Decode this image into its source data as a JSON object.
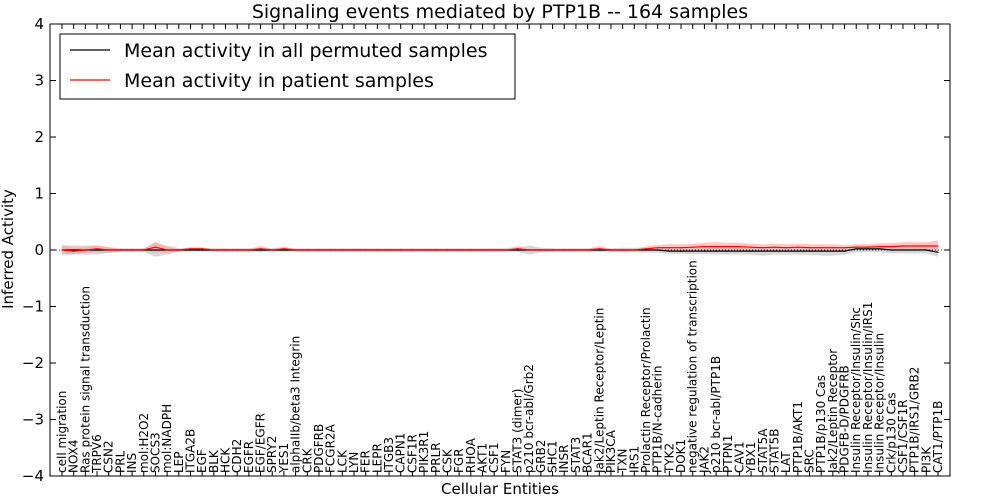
{
  "chart_data": {
    "type": "line",
    "title": "Signaling events mediated by PTP1B -- 164 samples",
    "xlabel": "Cellular Entities",
    "ylabel": "Inferred Activity",
    "ylim": [
      -4,
      4
    ],
    "yticks": [
      4,
      3,
      2,
      1,
      0,
      -1,
      -2,
      -3,
      -4
    ],
    "ytick_labels": [
      "4",
      "3",
      "2",
      "1",
      "0",
      "−1",
      "−2",
      "−3",
      "−4"
    ],
    "grid": false,
    "legend_position": "top-left",
    "categories": [
      "cell migration",
      "NOX4",
      "Ras protein signal transduction",
      "TRPV6",
      "CSN2",
      "PRL",
      "INS",
      "mol:H2O2",
      "SOCS3",
      "mol:NADPH",
      "LEP",
      "ITGA2B",
      "EGF",
      "BLK",
      "HCK",
      "CDH2",
      "EGFR",
      "EGF/EGFR",
      "SPRY2",
      "YES1",
      "alphaIIb/beta3 Integrin",
      "CRK",
      "PDGFRB",
      "FCGR2A",
      "LCK",
      "LYN",
      "FER",
      "LEPR",
      "ITGB3",
      "CAPN1",
      "CSF1R",
      "PIK3R1",
      "PRLR",
      "CSK",
      "FGR",
      "RHOA",
      "AKT1",
      "CSF1",
      "FYN",
      "STAT3 (dimer)",
      "p210 bcr-abl/Grb2",
      "GRB2",
      "SHC1",
      "INSR",
      "STAT3",
      "BCAR1",
      "Jak2/Leptin Receptor/Leptin",
      "PIK3CA",
      "TXN",
      "IRS1",
      "Prolactin Receptor/Prolactin",
      "PTP1B/N-cadherin",
      "TYK2",
      "DOK1",
      "negative regulation of transcription",
      "JAK2",
      "p210 bcr-abl/PTP1B",
      "PTPN1",
      "CAV1",
      "YBX1",
      "STAT5A",
      "STAT5B",
      "LAT",
      "PTP1B/AKT1",
      "SRC",
      "PTP1B/p130 Cas",
      "Jak2/Leptin Receptor",
      "PDGFB-D/PDGFRB",
      "Insulin Receptor/Insulin/Shc",
      "Insulin Receptor/Insulin/IRS1",
      "Insulin Receptor/Insulin",
      "Crk/p130 Cas",
      "CSF1/CSF1R",
      "PTP1B/IRS1/GRB2",
      "PI3K",
      "CAT1/PTP1B"
    ],
    "series": [
      {
        "name": "Mean activity in all permuted samples",
        "color": "#000000",
        "band_color": "#b0b0b0",
        "values": [
          0,
          0,
          0,
          0,
          0,
          0,
          0,
          0,
          0,
          0,
          0,
          0,
          0,
          0,
          0,
          0,
          0,
          0,
          0,
          0,
          0,
          0,
          0,
          0,
          0,
          0,
          0,
          0,
          0,
          0,
          0,
          0,
          0,
          0,
          0,
          0,
          0,
          0,
          0,
          0,
          0,
          0,
          0,
          0,
          0,
          0,
          0,
          0,
          0,
          0,
          0,
          0,
          -0.02,
          -0.02,
          -0.02,
          -0.02,
          -0.02,
          -0.02,
          -0.02,
          -0.02,
          -0.02,
          -0.02,
          -0.02,
          -0.02,
          -0.02,
          -0.02,
          -0.02,
          -0.02,
          0.02,
          0.02,
          0.02,
          0,
          0,
          0,
          0,
          -0.04
        ],
        "band": [
          0.08,
          0.08,
          0.08,
          0.08,
          0.05,
          0.03,
          0.03,
          0.03,
          0.12,
          0.08,
          0.03,
          0.03,
          0.03,
          0.03,
          0.03,
          0.03,
          0.03,
          0.03,
          0.03,
          0.03,
          0.03,
          0.03,
          0.03,
          0.03,
          0.03,
          0.03,
          0.03,
          0.03,
          0.03,
          0.03,
          0.03,
          0.03,
          0.03,
          0.03,
          0.03,
          0.03,
          0.03,
          0.03,
          0.03,
          0.03,
          0.08,
          0.04,
          0.03,
          0.03,
          0.03,
          0.03,
          0.03,
          0.03,
          0.04,
          0.04,
          0.05,
          0.05,
          0.05,
          0.05,
          0.05,
          0.05,
          0.06,
          0.06,
          0.06,
          0.06,
          0.08,
          0.06,
          0.06,
          0.06,
          0.06,
          0.08,
          0.08,
          0.06,
          0.06,
          0.06,
          0.06,
          0.06,
          0.06,
          0.06,
          0.06,
          0.08
        ]
      },
      {
        "name": "Mean activity in patient samples",
        "color": "#ff0000",
        "band_color": "#ff9a9a",
        "values": [
          0,
          -0.02,
          0,
          0.02,
          0,
          0,
          0,
          0,
          0.05,
          0,
          0,
          0.02,
          0.02,
          0,
          0,
          0,
          0,
          0.02,
          0,
          0.02,
          0,
          0,
          0,
          0,
          0,
          0,
          0,
          0,
          0,
          0,
          0,
          0,
          0,
          0,
          0,
          0,
          0,
          0,
          0,
          0.02,
          0,
          0,
          0,
          0,
          0,
          0,
          0.02,
          0,
          0,
          0,
          0.02,
          0.04,
          0.04,
          0.04,
          0.05,
          0.06,
          0.06,
          0.06,
          0.06,
          0.05,
          0.04,
          0.05,
          0.04,
          0.05,
          0.04,
          0.04,
          0.04,
          0.04,
          0.05,
          0.05,
          0.06,
          0.06,
          0.07,
          0.07,
          0.07,
          0.07
        ],
        "band": [
          0.08,
          0.06,
          0.05,
          0.06,
          0.05,
          0.02,
          0.02,
          0.02,
          0.1,
          0.05,
          0.02,
          0.03,
          0.03,
          0.02,
          0.02,
          0.02,
          0.02,
          0.05,
          0.02,
          0.04,
          0.02,
          0.02,
          0.02,
          0.02,
          0.02,
          0.02,
          0.02,
          0.02,
          0.02,
          0.02,
          0.02,
          0.02,
          0.02,
          0.02,
          0.02,
          0.02,
          0.02,
          0.02,
          0.02,
          0.05,
          0.02,
          0.02,
          0.02,
          0.02,
          0.02,
          0.02,
          0.05,
          0.02,
          0.02,
          0.02,
          0.04,
          0.05,
          0.06,
          0.06,
          0.06,
          0.07,
          0.08,
          0.07,
          0.07,
          0.06,
          0.06,
          0.06,
          0.06,
          0.06,
          0.06,
          0.06,
          0.06,
          0.05,
          0.05,
          0.05,
          0.06,
          0.06,
          0.07,
          0.07,
          0.07,
          0.1
        ]
      }
    ]
  }
}
